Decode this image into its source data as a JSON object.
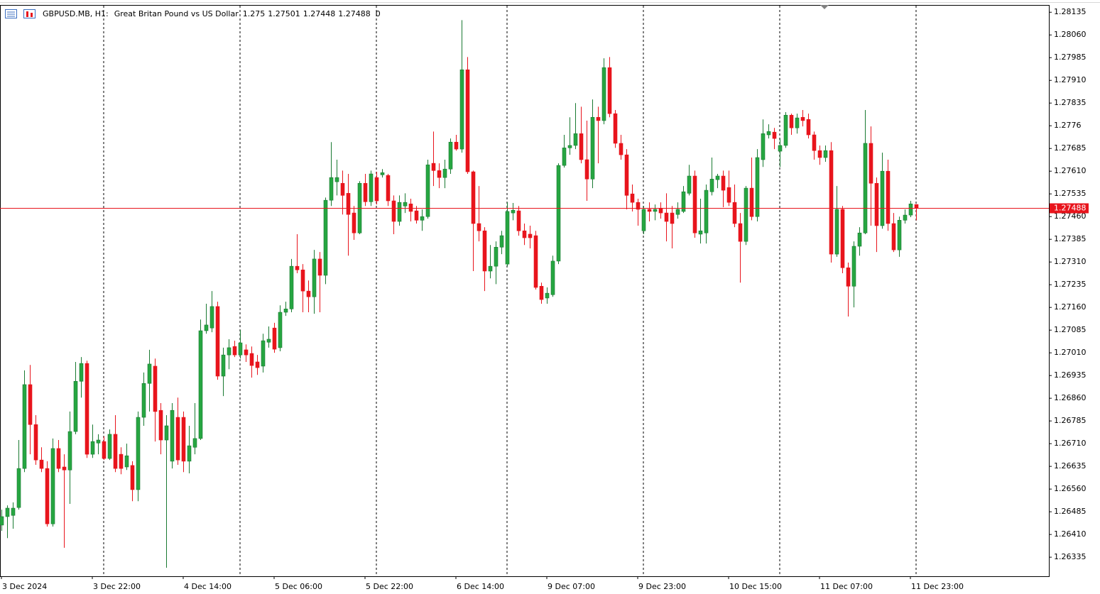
{
  "chart_data": {
    "type": "candlestick",
    "title": "GBPUSD.MB, H1:",
    "description": "Great Britan Pound vs US Dollar",
    "header_extra_value": 0,
    "up_color": "#26a641",
    "down_color": "#e8141c",
    "price_line_color": "#e8141c",
    "categories": [
      "3 Dec 2024",
      null,
      null,
      null,
      null,
      null,
      null,
      null,
      null,
      null,
      null,
      null,
      null,
      null,
      null,
      null,
      "3 Dec 22:00",
      null,
      null,
      null,
      null,
      null,
      null,
      null,
      null,
      null,
      null,
      null,
      null,
      null,
      null,
      null,
      "4 Dec 14:00",
      null,
      null,
      null,
      null,
      null,
      null,
      null,
      null,
      null,
      null,
      null,
      null,
      null,
      null,
      null,
      "5 Dec 06:00",
      null,
      null,
      null,
      null,
      null,
      null,
      null,
      null,
      null,
      null,
      null,
      null,
      null,
      null,
      null,
      "5 Dec 22:00",
      null,
      null,
      null,
      null,
      null,
      null,
      null,
      null,
      null,
      null,
      null,
      null,
      null,
      null,
      null,
      "6 Dec 14:00",
      null,
      null,
      null,
      null,
      null,
      null,
      null,
      null,
      null,
      null,
      null,
      null,
      null,
      null,
      null,
      "9 Dec 07:00",
      null,
      null,
      null,
      null,
      null,
      null,
      null,
      null,
      null,
      null,
      null,
      null,
      null,
      null,
      null,
      "9 Dec 23:00",
      null,
      null,
      null,
      null,
      null,
      null,
      null,
      null,
      null,
      null,
      null,
      null,
      null,
      null,
      null,
      "10 Dec 15:00",
      null,
      null,
      null,
      null,
      null,
      null,
      null,
      null,
      null,
      null,
      null,
      null,
      null,
      null,
      null,
      "11 Dec 07:00",
      null,
      null,
      null,
      null,
      null,
      null,
      null,
      null,
      null,
      null,
      null,
      null,
      null,
      null,
      null,
      "11 Dec 23:00",
      null
    ],
    "open": [
      1.26441,
      1.26469,
      1.26473,
      1.26499,
      1.26628,
      1.26905,
      1.26773,
      1.26656,
      1.26628,
      1.26445,
      1.26694,
      1.26633,
      1.26623,
      1.2675,
      1.26916,
      1.26975,
      1.26675,
      1.26712,
      1.26717,
      1.26661,
      1.26741,
      1.26675,
      1.26633,
      1.26638,
      1.26558,
      1.26797,
      1.26909,
      1.26966,
      1.2682,
      1.26722,
      1.26652,
      1.26797,
      1.26797,
      1.26652,
      1.26698,
      1.26727,
      1.27083,
      1.27092,
      1.27163,
      1.26933,
      1.27003,
      1.27031,
      1.27003,
      1.2702,
      1.27008,
      1.2698,
      1.26966,
      1.27045,
      1.27092,
      1.27027,
      1.27144,
      1.27155,
      1.27296,
      1.27284,
      1.27214,
      1.27195,
      1.2732,
      1.27266,
      1.27514,
      1.27575,
      1.2757,
      1.27537,
      1.27472,
      1.27406,
      1.2757,
      1.27509,
      1.27589,
      1.27598,
      1.27596,
      1.27512,
      1.27444,
      1.27495,
      1.27502,
      1.27479,
      1.27448,
      1.2746,
      1.27636,
      1.27612,
      1.27589,
      1.27617,
      1.27706,
      1.27683,
      1.27945,
      1.27608,
      1.27437,
      1.27413,
      1.2728,
      1.27296,
      1.27359,
      1.27303,
      1.27472,
      1.27479,
      1.27413,
      1.27402,
      1.27397,
      1.2723,
      1.27191,
      1.27202,
      1.27313,
      1.27629,
      1.27687,
      1.27695,
      1.27734,
      1.27648,
      1.27584,
      1.27788,
      1.27777,
      1.27952,
      1.278,
      1.27702,
      1.27664,
      1.27535,
      1.27507,
      1.27413,
      1.27484,
      1.27477,
      1.27488,
      1.27472,
      1.27472,
      1.27467,
      1.27477,
      1.27537,
      1.27594,
      1.27402,
      1.27406,
      1.27542,
      1.27582,
      1.27594,
      1.27556,
      1.27507,
      1.27437,
      1.27378,
      1.27554,
      1.2746,
      1.27648,
      1.2773,
      1.27739,
      1.27676,
      1.27695,
      1.27795,
      1.27753,
      1.27788,
      1.27781,
      1.2773,
      1.27678,
      1.27655,
      1.27678,
      1.27336,
      1.27484,
      1.27291,
      1.2723,
      1.27362,
      1.27406,
      1.27702,
      1.2757,
      1.2743,
      1.2761,
      1.27437,
      1.2735,
      1.27448,
      1.27465,
      1.275
    ],
    "high": [
      1.26492,
      1.26506,
      1.26516,
      1.26722,
      1.26952,
      1.2697,
      1.26804,
      1.26698,
      1.26652,
      1.26727,
      1.26722,
      1.26675,
      1.26816,
      1.2698,
      1.26996,
      1.26984,
      1.26773,
      1.26741,
      1.26734,
      1.26757,
      1.26804,
      1.26698,
      1.2671,
      1.26652,
      1.26816,
      1.26945,
      1.2702,
      1.26991,
      1.26844,
      1.26804,
      1.26844,
      1.26862,
      1.26816,
      1.26769,
      1.26844,
      1.2712,
      1.27172,
      1.27214,
      1.27179,
      1.27027,
      1.27055,
      1.2705,
      1.27085,
      1.27038,
      1.27031,
      1.27003,
      1.27073,
      1.27097,
      1.27109,
      1.27167,
      1.27179,
      1.2732,
      1.27402,
      1.27303,
      1.27249,
      1.2735,
      1.27343,
      1.27523,
      1.27706,
      1.27648,
      1.27612,
      1.27601,
      1.27495,
      1.27577,
      1.27601,
      1.27612,
      1.27608,
      1.27617,
      1.27601,
      1.2753,
      1.2753,
      1.27537,
      1.27519,
      1.27495,
      1.27484,
      1.27648,
      1.27741,
      1.27636,
      1.27648,
      1.27718,
      1.2773,
      1.28109,
      1.27987,
      1.27612,
      1.27561,
      1.27425,
      1.27366,
      1.27378,
      1.27413,
      1.27507,
      1.27505,
      1.27495,
      1.27437,
      1.2743,
      1.27413,
      1.27242,
      1.27226,
      1.27331,
      1.27636,
      1.2773,
      1.27788,
      1.27835,
      1.27823,
      1.27777,
      1.27847,
      1.27823,
      1.27983,
      1.27987,
      1.27812,
      1.2773,
      1.27683,
      1.27566,
      1.27519,
      1.27495,
      1.27507,
      1.275,
      1.27507,
      1.27537,
      1.27495,
      1.27507,
      1.27561,
      1.27631,
      1.27612,
      1.27519,
      1.27566,
      1.27655,
      1.27601,
      1.27612,
      1.27612,
      1.27566,
      1.27472,
      1.27561,
      1.27655,
      1.27683,
      1.27781,
      1.27765,
      1.27753,
      1.27718,
      1.27805,
      1.278,
      1.278,
      1.27812,
      1.278,
      1.27741,
      1.27695,
      1.27695,
      1.27706,
      1.27561,
      1.27495,
      1.27308,
      1.27378,
      1.27425,
      1.27812,
      1.27758,
      1.27589,
      1.27671,
      1.27648,
      1.27472,
      1.2746,
      1.27484,
      1.27512,
      1.27501
    ],
    "low": [
      1.26422,
      1.26398,
      1.26429,
      1.26492,
      1.26616,
      1.26675,
      1.2664,
      1.26616,
      1.26436,
      1.26436,
      1.26616,
      1.26366,
      1.26511,
      1.26741,
      1.26862,
      1.26663,
      1.26663,
      1.26675,
      1.26656,
      1.26656,
      1.26616,
      1.26609,
      1.26623,
      1.2652,
      1.2652,
      1.26769,
      1.26816,
      1.26717,
      1.26675,
      1.263,
      1.26628,
      1.2664,
      1.26616,
      1.26612,
      1.26675,
      1.26722,
      1.27073,
      1.27078,
      1.26921,
      1.26867,
      1.26956,
      1.26996,
      1.26991,
      1.2698,
      1.26928,
      1.26937,
      1.26945,
      1.27027,
      1.2701,
      1.27015,
      1.27132,
      1.27144,
      1.27273,
      1.27144,
      1.27144,
      1.27139,
      1.27144,
      1.27237,
      1.27495,
      1.2753,
      1.27467,
      1.27331,
      1.27383,
      1.27402,
      1.27495,
      1.27495,
      1.275,
      1.27589,
      1.27495,
      1.27402,
      1.2743,
      1.27472,
      1.27444,
      1.27437,
      1.27413,
      1.27453,
      1.27561,
      1.27554,
      1.27554,
      1.27601,
      1.27678,
      1.27671,
      1.27601,
      1.2728,
      1.27378,
      1.27214,
      1.27256,
      1.27237,
      1.27336,
      1.27296,
      1.27448,
      1.27397,
      1.27366,
      1.27355,
      1.27219,
      1.27172,
      1.27172,
      1.27195,
      1.27303,
      1.27622,
      1.27664,
      1.27683,
      1.27636,
      1.27512,
      1.27554,
      1.27636,
      1.27765,
      1.27788,
      1.27687,
      1.27648,
      1.27484,
      1.27477,
      1.2743,
      1.27402,
      1.27444,
      1.27448,
      1.27453,
      1.27378,
      1.27355,
      1.27453,
      1.27472,
      1.2753,
      1.2739,
      1.27371,
      1.27371,
      1.2753,
      1.27554,
      1.27491,
      1.27495,
      1.27425,
      1.27242,
      1.27366,
      1.27448,
      1.27444,
      1.27624,
      1.27718,
      1.27683,
      1.27624,
      1.27687,
      1.2773,
      1.27734,
      1.27758,
      1.27718,
      1.27648,
      1.27631,
      1.27641,
      1.27308,
      1.27327,
      1.27273,
      1.2713,
      1.2716,
      1.27331,
      1.27402,
      1.2743,
      1.27343,
      1.2742,
      1.27413,
      1.27343,
      1.27327,
      1.27437,
      1.27458,
      1.27448
    ],
    "close": [
      1.26469,
      1.26497,
      1.26497,
      1.26628,
      1.26905,
      1.26773,
      1.26656,
      1.26628,
      1.26445,
      1.26694,
      1.26628,
      1.26623,
      1.2675,
      1.26916,
      1.26975,
      1.26675,
      1.26717,
      1.26722,
      1.26661,
      1.26741,
      1.26628,
      1.26628,
      1.2667,
      1.26558,
      1.26797,
      1.26909,
      1.26973,
      1.26816,
      1.26722,
      1.26769,
      1.2682,
      1.26656,
      1.26652,
      1.26703,
      1.26727,
      1.27083,
      1.27102,
      1.27163,
      1.26933,
      1.27003,
      1.27027,
      1.27003,
      1.27043,
      1.27003,
      1.26968,
      1.26961,
      1.2705,
      1.27055,
      1.27022,
      1.27144,
      1.27155,
      1.27296,
      1.27284,
      1.27214,
      1.27195,
      1.2732,
      1.27266,
      1.27514,
      1.27589,
      1.27589,
      1.2753,
      1.27467,
      1.27406,
      1.2757,
      1.27509,
      1.27601,
      1.27512,
      1.27605,
      1.27512,
      1.27444,
      1.27507,
      1.27507,
      1.27477,
      1.27448,
      1.2746,
      1.27631,
      1.27612,
      1.27589,
      1.27617,
      1.27706,
      1.27683,
      1.27945,
      1.27608,
      1.27437,
      1.27413,
      1.2728,
      1.27296,
      1.27359,
      1.27397,
      1.27477,
      1.27481,
      1.27413,
      1.2739,
      1.2739,
      1.27226,
      1.27186,
      1.27207,
      1.27313,
      1.27629,
      1.27687,
      1.27695,
      1.27734,
      1.27648,
      1.27584,
      1.27788,
      1.27777,
      1.27952,
      1.278,
      1.27702,
      1.27664,
      1.2753,
      1.27507,
      1.27484,
      1.27484,
      1.27477,
      1.27484,
      1.27472,
      1.27444,
      1.27437,
      1.27484,
      1.27542,
      1.27594,
      1.27406,
      1.27413,
      1.27547,
      1.27584,
      1.27594,
      1.27547,
      1.27507,
      1.27437,
      1.27378,
      1.27554,
      1.2746,
      1.27655,
      1.27734,
      1.27741,
      1.27718,
      1.27695,
      1.27795,
      1.27753,
      1.27786,
      1.27777,
      1.2773,
      1.27678,
      1.27655,
      1.27678,
      1.27336,
      1.27484,
      1.27291,
      1.2723,
      1.27362,
      1.27406,
      1.27702,
      1.2757,
      1.2743,
      1.2761,
      1.27437,
      1.2735,
      1.27448,
      1.27465,
      1.27502,
      1.27488
    ],
    "ylim": [
      1.26272,
      1.28159
    ],
    "yticks": [
      1.28135,
      {
        "value": 1.2806,
        "label": "1.28060"
      },
      1.27985,
      {
        "value": 1.2791,
        "label": "1.27910"
      },
      1.27835,
      1.2776,
      1.27685,
      {
        "value": 1.2761,
        "label": "1.27610"
      },
      1.27535,
      {
        "value": 1.2746,
        "label": "1.27460"
      },
      1.27385,
      {
        "value": 1.2731,
        "label": "1.27310"
      },
      1.27235,
      {
        "value": 1.2716,
        "label": "1.27160"
      },
      1.27085,
      {
        "value": 1.2701,
        "label": "1.27010"
      },
      1.26935,
      {
        "value": 1.2686,
        "label": "1.26860"
      },
      1.26785,
      {
        "value": 1.2671,
        "label": "1.26710"
      },
      1.26635,
      {
        "value": 1.2656,
        "label": "1.26560"
      },
      1.26485,
      {
        "value": 1.2641,
        "label": "1.26410"
      },
      1.26335
    ],
    "grid": false
  }
}
